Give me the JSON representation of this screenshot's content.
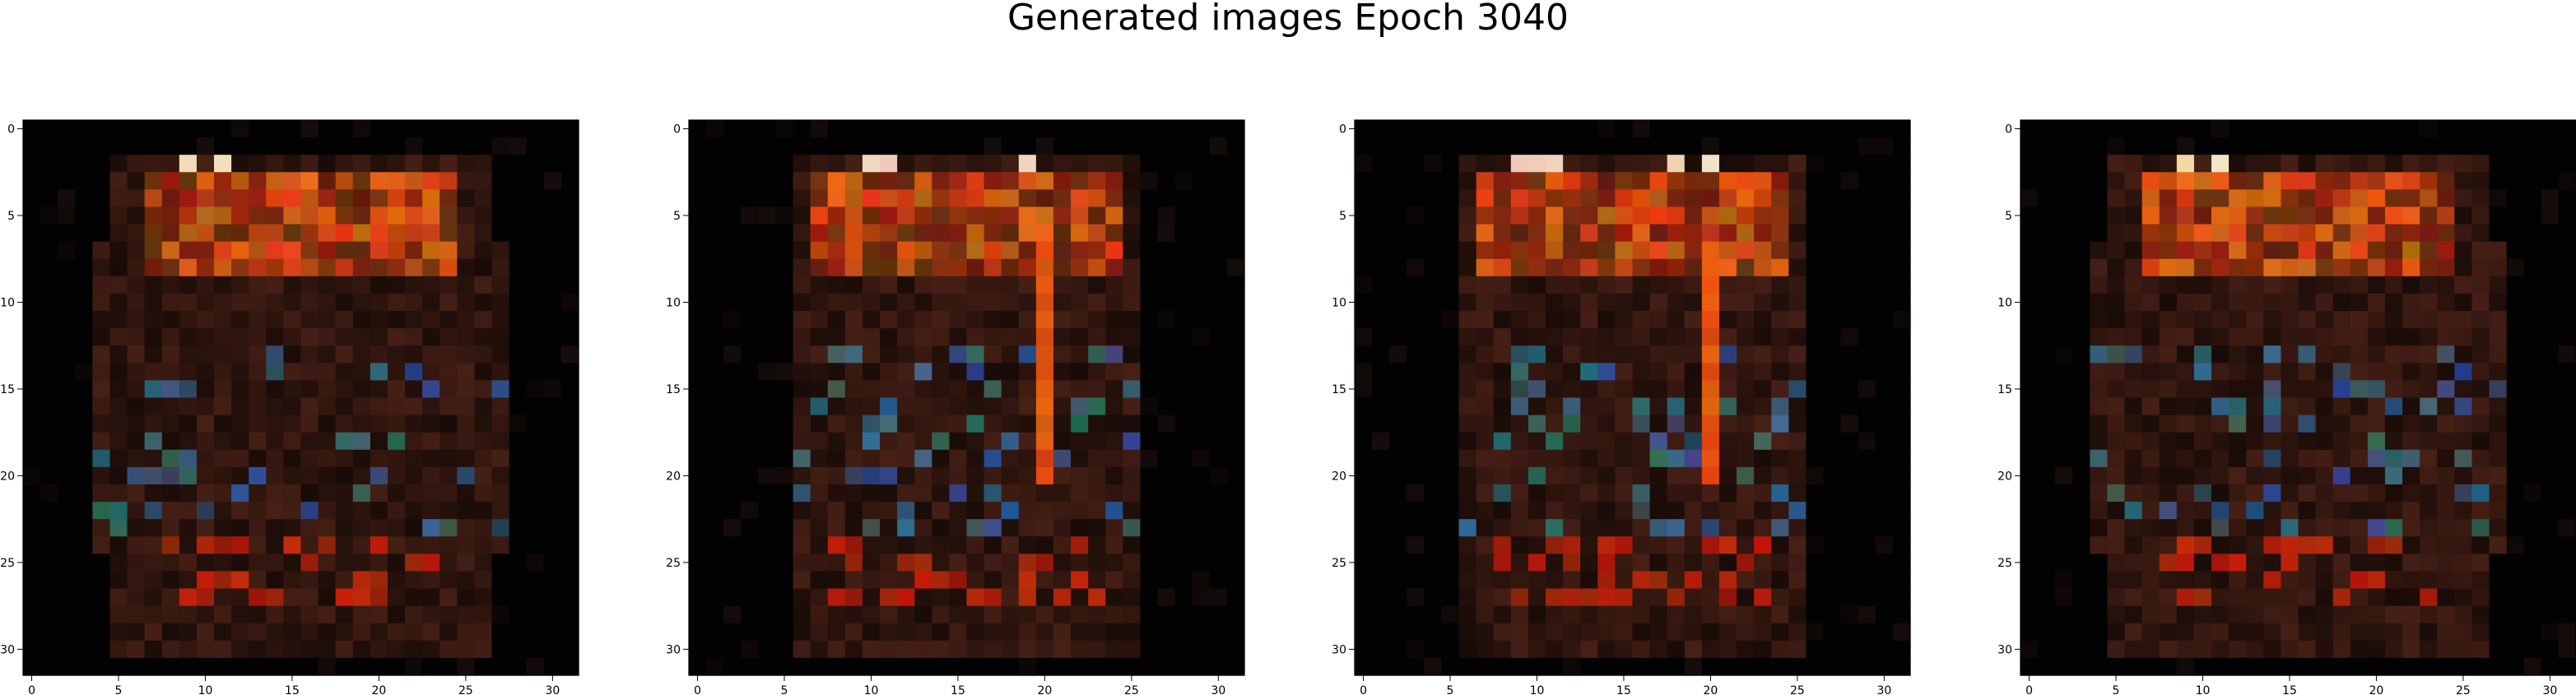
{
  "figure": {
    "title": "Generated images Epoch 3040"
  },
  "chart_data": [
    {
      "type": "heatmap",
      "xlim": [
        -0.5,
        31.5
      ],
      "ylim": [
        31.5,
        -0.5
      ],
      "x_ticks": [
        0,
        5,
        10,
        15,
        20,
        25,
        30
      ],
      "y_ticks": [
        0,
        5,
        10,
        15,
        20,
        25,
        30
      ],
      "background_color": "#020202"
    },
    {
      "type": "heatmap",
      "xlim": [
        -0.5,
        31.5
      ],
      "ylim": [
        31.5,
        -0.5
      ],
      "x_ticks": [
        0,
        5,
        10,
        15,
        20,
        25,
        30
      ],
      "y_ticks": [
        0,
        5,
        10,
        15,
        20,
        25,
        30
      ],
      "background_color": "#020202"
    },
    {
      "type": "heatmap",
      "xlim": [
        -0.5,
        31.5
      ],
      "ylim": [
        31.5,
        -0.5
      ],
      "x_ticks": [
        0,
        5,
        10,
        15,
        20,
        25,
        30
      ],
      "y_ticks": [
        0,
        5,
        10,
        15,
        20,
        25,
        30
      ],
      "background_color": "#020202"
    },
    {
      "type": "heatmap",
      "xlim": [
        -0.5,
        31.5
      ],
      "ylim": [
        31.5,
        -0.5
      ],
      "x_ticks": [
        0,
        5,
        10,
        15,
        20,
        25,
        30
      ],
      "y_ticks": [
        0,
        5,
        10,
        15,
        20,
        25,
        30
      ],
      "background_color": "#020202"
    }
  ]
}
